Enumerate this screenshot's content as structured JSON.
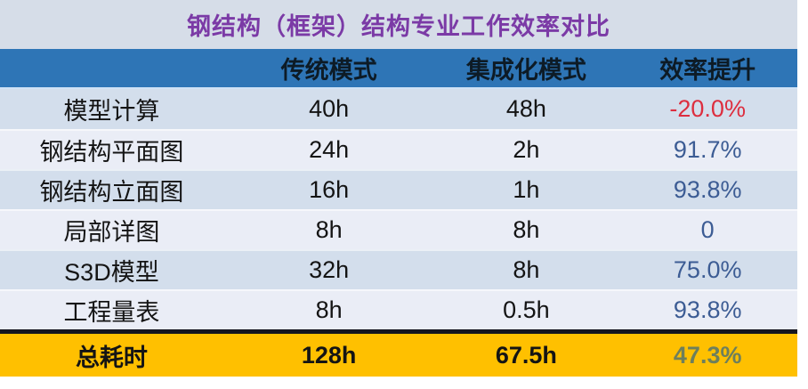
{
  "title": "钢结构（框架）结构专业工作效率对比",
  "table": {
    "columns": {
      "c1": "",
      "c2": "传统模式",
      "c3": "集成化模式",
      "c4": "效率提升"
    },
    "rows": [
      {
        "label": "模型计算",
        "traditional": "40h",
        "integrated": "48h",
        "efficiency": "-20.0%",
        "efficiency_color": "#dd2e3f"
      },
      {
        "label": "钢结构平面图",
        "traditional": "24h",
        "integrated": "2h",
        "efficiency": "91.7%",
        "efficiency_color": "#3c5c94"
      },
      {
        "label": "钢结构立面图",
        "traditional": "16h",
        "integrated": "1h",
        "efficiency": "93.8%",
        "efficiency_color": "#3c5c94"
      },
      {
        "label": "局部详图",
        "traditional": "8h",
        "integrated": "8h",
        "efficiency": "0",
        "efficiency_color": "#3c5c94"
      },
      {
        "label": "S3D模型",
        "traditional": "32h",
        "integrated": "8h",
        "efficiency": "75.0%",
        "efficiency_color": "#3c5c94"
      },
      {
        "label": "工程量表",
        "traditional": "8h",
        "integrated": "0.5h",
        "efficiency": "93.8%",
        "efficiency_color": "#3c5c94"
      }
    ],
    "total": {
      "label": "总耗时",
      "traditional": "128h",
      "integrated": "67.5h",
      "efficiency": "47.3%",
      "efficiency_color": "#6e7f5c"
    }
  },
  "colors": {
    "title_bg": "#d6dde8",
    "title_text": "#7b3aa6",
    "header_bg": "#2e75b6",
    "row_alt_a": "#d3deec",
    "row_alt_b": "#eaedf6",
    "total_bg": "#ffc000",
    "negative_text": "#dd2e3f",
    "positive_text": "#3c5c94"
  }
}
